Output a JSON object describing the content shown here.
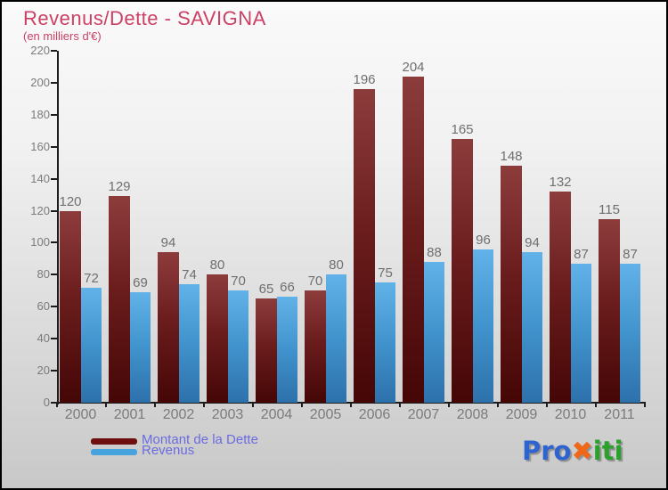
{
  "title": "Revenus/Dette - SAVIGNA",
  "subtitle": "(en milliers d'€)",
  "colors": {
    "title": "#cc4066",
    "axis": "#1c1c1c",
    "tick_label": "#7b7b7b",
    "value_label": "#6f6f6f",
    "legend_text": "#6b6be0",
    "legend_dette_swatch": "#6e0f0f",
    "legend_revenus_swatch": "#47a3db",
    "bar_dette_top": "#8d3c3c",
    "bar_dette_bottom": "#450606",
    "bar_revenus_top": "#61b2e8",
    "bar_revenus_bottom": "#2d71ab"
  },
  "chart_data": {
    "type": "bar",
    "title": "Revenus/Dette - SAVIGNA",
    "subtitle": "(en milliers d'€)",
    "categories": [
      "2000",
      "2001",
      "2002",
      "2003",
      "2004",
      "2005",
      "2006",
      "2007",
      "2008",
      "2009",
      "2010",
      "2011"
    ],
    "series": [
      {
        "name": "Montant de la Dette",
        "color_key": "dette",
        "values": [
          120,
          129,
          94,
          80,
          65,
          70,
          196,
          204,
          165,
          148,
          132,
          115
        ]
      },
      {
        "name": "Revenus",
        "color_key": "revenus",
        "values": [
          72,
          69,
          74,
          70,
          66,
          80,
          75,
          88,
          96,
          94,
          87,
          87
        ]
      }
    ],
    "ylim": [
      0,
      220
    ],
    "ytick_step": 20,
    "grid": false,
    "value_labels": true,
    "legend_position": "bottom-left"
  },
  "legend": {
    "items": [
      {
        "label": "Montant de la Dette"
      },
      {
        "label": "Revenus"
      }
    ]
  },
  "logo": {
    "segments": [
      {
        "text": "Pro",
        "color": "#2e64cf"
      },
      {
        "text": "✖",
        "color": "#f06717"
      },
      {
        "text": "iti",
        "color": "#2ca02c"
      }
    ]
  }
}
